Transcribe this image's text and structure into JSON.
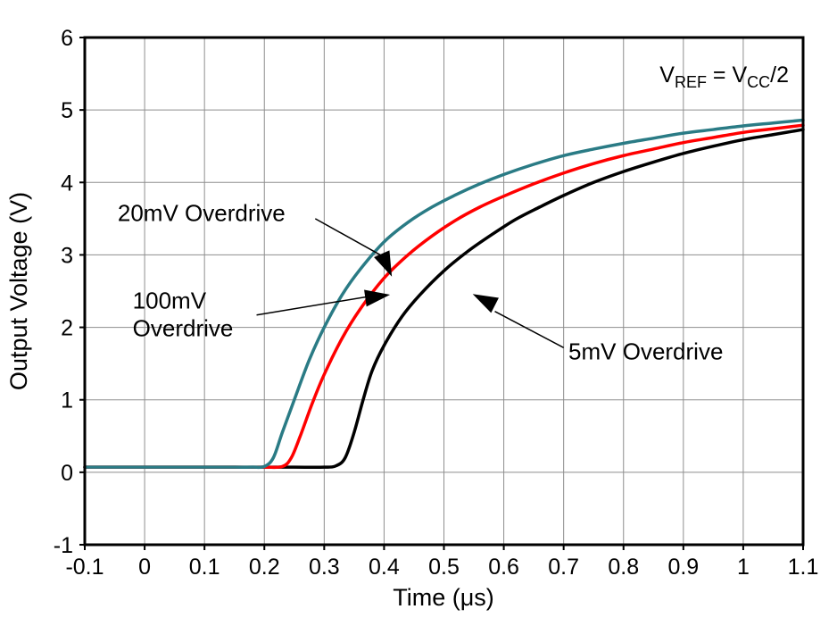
{
  "chart_data": {
    "type": "line",
    "title": "",
    "xlabel": "Time (μs)",
    "ylabel": "Output Voltage (V)",
    "xlim": [
      -0.1,
      1.1
    ],
    "ylim": [
      -1,
      6
    ],
    "grid": true,
    "grid_color": "#8E8E8E",
    "legend_position": "inline-annotations",
    "xticks": [
      {
        "v": -0.1,
        "label": "-0.1"
      },
      {
        "v": 0,
        "label": "0"
      },
      {
        "v": 0.1,
        "label": "0.1"
      },
      {
        "v": 0.2,
        "label": "0.2"
      },
      {
        "v": 0.3,
        "label": "0.3"
      },
      {
        "v": 0.4,
        "label": "0.4"
      },
      {
        "v": 0.5,
        "label": "0.5"
      },
      {
        "v": 0.6,
        "label": "0.6"
      },
      {
        "v": 0.7,
        "label": "0.7"
      },
      {
        "v": 0.8,
        "label": "0.8"
      },
      {
        "v": 0.9,
        "label": "0.9"
      },
      {
        "v": 1,
        "label": "1"
      },
      {
        "v": 1.1,
        "label": "1.1"
      }
    ],
    "yticks": [
      {
        "v": -1,
        "label": "-1"
      },
      {
        "v": 0,
        "label": "0"
      },
      {
        "v": 1,
        "label": "1"
      },
      {
        "v": 2,
        "label": "2"
      },
      {
        "v": 3,
        "label": "3"
      },
      {
        "v": 4,
        "label": "4"
      },
      {
        "v": 5,
        "label": "5"
      },
      {
        "v": 6,
        "label": "6"
      }
    ],
    "series": [
      {
        "name": "100mV Overdrive",
        "color": "#2A7B85",
        "x": [
          -0.1,
          -0.05,
          0.0,
          0.05,
          0.1,
          0.15,
          0.18,
          0.2,
          0.215,
          0.23,
          0.25,
          0.275,
          0.3,
          0.33,
          0.36,
          0.4,
          0.44,
          0.48,
          0.52,
          0.56,
          0.6,
          0.65,
          0.7,
          0.75,
          0.8,
          0.85,
          0.9,
          0.95,
          1.0,
          1.05,
          1.1
        ],
        "y": [
          0.07,
          0.07,
          0.07,
          0.07,
          0.07,
          0.07,
          0.07,
          0.08,
          0.2,
          0.55,
          1.0,
          1.55,
          2.0,
          2.45,
          2.8,
          3.18,
          3.45,
          3.66,
          3.83,
          3.98,
          4.11,
          4.25,
          4.37,
          4.46,
          4.54,
          4.61,
          4.68,
          4.73,
          4.78,
          4.82,
          4.86
        ]
      },
      {
        "name": "20mV Overdrive",
        "color": "#FF0000",
        "x": [
          -0.1,
          -0.05,
          0.0,
          0.05,
          0.1,
          0.15,
          0.2,
          0.23,
          0.245,
          0.26,
          0.28,
          0.3,
          0.33,
          0.36,
          0.4,
          0.44,
          0.48,
          0.52,
          0.56,
          0.6,
          0.65,
          0.7,
          0.75,
          0.8,
          0.85,
          0.9,
          0.95,
          1.0,
          1.05,
          1.1
        ],
        "y": [
          0.07,
          0.07,
          0.07,
          0.07,
          0.07,
          0.07,
          0.07,
          0.08,
          0.2,
          0.5,
          0.95,
          1.35,
          1.85,
          2.25,
          2.68,
          3.0,
          3.26,
          3.48,
          3.66,
          3.81,
          3.98,
          4.13,
          4.26,
          4.37,
          4.46,
          4.55,
          4.62,
          4.69,
          4.74,
          4.79
        ]
      },
      {
        "name": "5mV Overdrive",
        "color": "#000000",
        "x": [
          -0.1,
          -0.05,
          0.0,
          0.05,
          0.1,
          0.15,
          0.2,
          0.25,
          0.3,
          0.32,
          0.335,
          0.35,
          0.365,
          0.38,
          0.4,
          0.43,
          0.46,
          0.5,
          0.54,
          0.58,
          0.62,
          0.66,
          0.7,
          0.75,
          0.8,
          0.85,
          0.9,
          0.95,
          1.0,
          1.05,
          1.1
        ],
        "y": [
          0.07,
          0.07,
          0.07,
          0.07,
          0.07,
          0.07,
          0.07,
          0.07,
          0.07,
          0.09,
          0.2,
          0.55,
          1.0,
          1.4,
          1.75,
          2.15,
          2.45,
          2.78,
          3.05,
          3.28,
          3.49,
          3.66,
          3.82,
          4.0,
          4.15,
          4.28,
          4.4,
          4.5,
          4.59,
          4.66,
          4.73
        ]
      }
    ],
    "annotations": [
      {
        "lines": [
          "20mV Overdrive"
        ],
        "text_x": -0.045,
        "text_y": 3.47,
        "leader": [
          [
            0.285,
            3.5
          ],
          [
            0.398,
            2.98
          ]
        ],
        "arrow_tip": [
          0.413,
          2.7
        ],
        "arrow_angle": 66
      },
      {
        "lines": [
          "100mV",
          "Overdrive"
        ],
        "text_x": -0.02,
        "text_y": 2.26,
        "leader": [
          [
            0.187,
            2.17
          ],
          [
            0.37,
            2.42
          ]
        ],
        "arrow_tip": [
          0.41,
          2.45
        ],
        "arrow_angle": -8
      },
      {
        "lines": [
          "5mV Overdrive"
        ],
        "text_x": 0.708,
        "text_y": 1.56,
        "leader": [
          [
            0.7,
            1.72
          ],
          [
            0.585,
            2.22
          ]
        ],
        "arrow_tip": [
          0.548,
          2.46
        ],
        "arrow_angle": -153
      }
    ],
    "corner_label": {
      "text": "VREF = VCC/2",
      "v": "V",
      "ref": "REF",
      "eq": " = V",
      "cc": "CC",
      "half": "/2"
    }
  }
}
